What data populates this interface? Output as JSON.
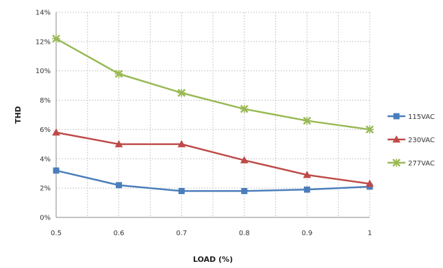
{
  "chart_data": {
    "type": "line",
    "title": "",
    "xlabel": "LOAD (%)",
    "ylabel": "THD",
    "x": [
      0.5,
      0.6,
      0.7,
      0.8,
      0.9,
      1
    ],
    "x_tick_labels": [
      "0.5",
      "0.6",
      "0.7",
      "0.8",
      "0.9",
      "1"
    ],
    "xlim": [
      0.5,
      1
    ],
    "ylim": [
      0,
      14
    ],
    "y_ticks": [
      0,
      2,
      4,
      6,
      8,
      10,
      12,
      14
    ],
    "y_tick_labels": [
      "0%",
      "2%",
      "4%",
      "6%",
      "8%",
      "10%",
      "12%",
      "14%"
    ],
    "y_unit": "%",
    "grid": true,
    "legend_position": "right",
    "series": [
      {
        "name": "115VAC",
        "values": [
          3.2,
          2.2,
          1.8,
          1.8,
          1.9,
          2.1
        ],
        "color": "#4a7ebb",
        "marker": "square"
      },
      {
        "name": "230VAC",
        "values": [
          5.8,
          5.0,
          5.0,
          3.9,
          2.9,
          2.3
        ],
        "color": "#be4b48",
        "marker": "triangle"
      },
      {
        "name": "277VAC",
        "values": [
          12.2,
          9.8,
          8.5,
          7.4,
          6.6,
          6.0
        ],
        "color": "#98b954",
        "marker": "x"
      }
    ]
  }
}
